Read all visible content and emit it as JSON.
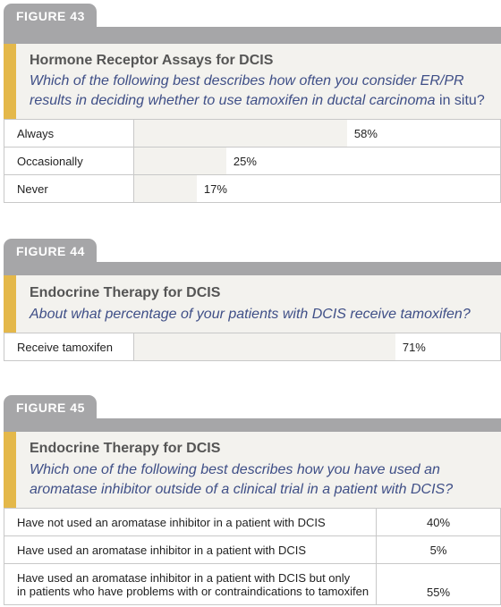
{
  "chart_data": [
    {
      "type": "bar",
      "tab": "FIGURE 43",
      "title": "Hormone Receptor Assays for DCIS",
      "question": "Which of the following best describes how often you consider ER/PR results in deciding whether to use tamoxifen in ductal carcinoma",
      "question_suffix": " in situ?",
      "categories": [
        "Always",
        "Occasionally",
        "Never"
      ],
      "values": [
        58,
        25,
        17
      ],
      "labels": [
        "58%",
        "25%",
        "17%"
      ]
    },
    {
      "type": "bar",
      "tab": "FIGURE 44",
      "title": "Endocrine Therapy for DCIS",
      "question": "About what percentage of your patients with DCIS receive tamoxifen?",
      "categories": [
        "Receive tamoxifen"
      ],
      "values": [
        71
      ],
      "labels": [
        "71%"
      ]
    },
    {
      "type": "table",
      "tab": "FIGURE 45",
      "title": "Endocrine Therapy for DCIS",
      "question": "Which one of the following best describes how you have used an aromatase inhibitor outside of a clinical trial in a patient with DCIS?",
      "categories": [
        "Have not used an aromatase inhibitor in a patient with DCIS",
        "Have used an aromatase inhibitor in a patient with DCIS",
        "Have used an aromatase inhibitor in a patient with DCIS but only in patients who have problems with or contraindications to tamoxifen"
      ],
      "category_lines": [
        [
          "Have not used an aromatase inhibitor in a patient with DCIS"
        ],
        [
          "Have used an aromatase inhibitor in a patient with DCIS"
        ],
        [
          "Have used an aromatase inhibitor in a patient with DCIS but only",
          "in patients who have problems with or contraindications to tamoxifen"
        ]
      ],
      "values": [
        40,
        5,
        55
      ],
      "labels": [
        "40%",
        "5%",
        "55%"
      ]
    }
  ],
  "colors": {
    "tab": "#a6a6a8",
    "accent": "#e4b84a",
    "panel": "#f3f2ee",
    "question": "#3f4f87",
    "title": "#555555"
  }
}
